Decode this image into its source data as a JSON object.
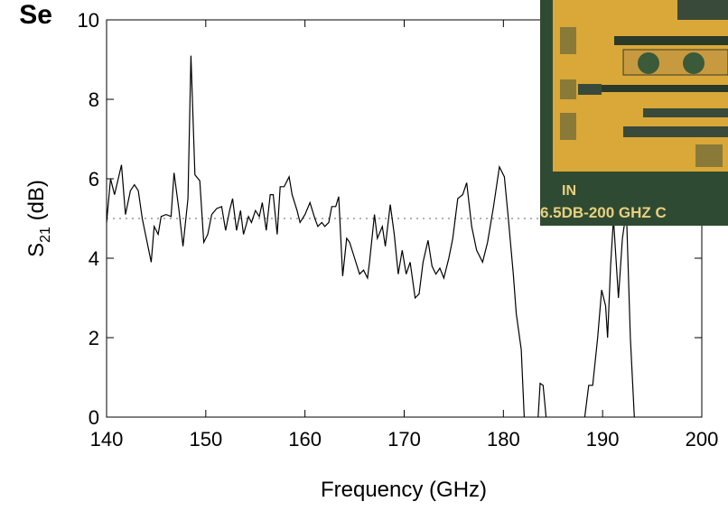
{
  "chart_data": {
    "type": "line",
    "title": "Se",
    "xlabel": "Frequency (GHz)",
    "ylabel": {
      "symbol": "S",
      "subscript": "21",
      "unit": "(dB)"
    },
    "xlim": [
      140,
      200
    ],
    "xticks": [
      140,
      150,
      160,
      170,
      180,
      190,
      200
    ],
    "ylim": [
      0,
      10
    ],
    "yticks": [
      0,
      2,
      4,
      6,
      8,
      10
    ],
    "reference_line": 5,
    "inset_labels": [
      "IN",
      "6.5DB-200 GHZ C"
    ],
    "series": [
      {
        "color": "#000000",
        "x": [
          140.0,
          140.4,
          140.8,
          141.5,
          141.9,
          142.4,
          142.8,
          143.2,
          143.6,
          144.5,
          144.8,
          145.2,
          145.5,
          146.0,
          146.5,
          146.8,
          147.3,
          147.7,
          148.2,
          148.5,
          148.9,
          149.4,
          149.8,
          150.2,
          150.6,
          151.1,
          151.6,
          152.0,
          152.4,
          152.7,
          153.1,
          153.5,
          153.8,
          154.3,
          154.6,
          155.0,
          155.4,
          155.7,
          156.1,
          156.5,
          156.8,
          157.2,
          157.5,
          157.9,
          158.4,
          158.7,
          159.2,
          159.5,
          160.0,
          160.5,
          161.0,
          161.3,
          161.7,
          162.0,
          162.4,
          162.7,
          163.1,
          163.4,
          163.8,
          164.2,
          164.5,
          165.0,
          165.5,
          165.9,
          166.3,
          166.5,
          167.0,
          167.3,
          167.8,
          168.1,
          168.6,
          169.0,
          169.4,
          169.8,
          170.2,
          170.6,
          171.1,
          171.5,
          171.9,
          172.4,
          172.8,
          173.2,
          173.6,
          174.0,
          174.5,
          174.9,
          175.4,
          175.9,
          176.3,
          176.8,
          177.3,
          177.9,
          178.4,
          179.0,
          179.6,
          180.1,
          180.5,
          181.0,
          181.3,
          181.8,
          182.1,
          182.8,
          183.5,
          183.7,
          184.0,
          184.3,
          186.0,
          188.2,
          188.6,
          189.0,
          189.5,
          189.9,
          190.3,
          190.5,
          190.8,
          191.1,
          191.6,
          192.0,
          192.4,
          192.8,
          193.2
        ],
        "values": [
          4.9,
          6.0,
          5.6,
          6.35,
          5.1,
          5.7,
          5.85,
          5.7,
          5.0,
          3.9,
          4.8,
          4.6,
          5.05,
          5.1,
          5.05,
          6.15,
          5.2,
          4.3,
          5.5,
          9.1,
          6.1,
          5.95,
          4.4,
          4.6,
          5.1,
          5.25,
          5.3,
          4.7,
          5.2,
          5.5,
          4.7,
          5.2,
          4.6,
          5.05,
          4.9,
          5.2,
          5.05,
          5.4,
          4.7,
          5.6,
          5.6,
          4.6,
          5.8,
          5.8,
          6.05,
          5.6,
          5.2,
          4.9,
          5.1,
          5.4,
          5.0,
          4.8,
          4.9,
          4.8,
          4.9,
          5.3,
          5.3,
          5.55,
          3.55,
          4.5,
          4.4,
          4.0,
          3.6,
          3.7,
          3.5,
          3.9,
          5.1,
          4.5,
          4.8,
          4.3,
          5.35,
          4.6,
          3.6,
          4.2,
          3.6,
          3.9,
          3.0,
          3.1,
          3.9,
          4.45,
          3.8,
          3.6,
          3.75,
          3.5,
          4.0,
          4.5,
          5.5,
          5.6,
          5.9,
          4.8,
          4.2,
          3.9,
          4.4,
          5.3,
          6.3,
          6.05,
          5.0,
          3.6,
          2.6,
          1.7,
          0,
          null,
          0,
          0.85,
          0.8,
          0,
          null,
          0,
          0.8,
          0.8,
          2.0,
          3.2,
          2.8,
          2.0,
          3.8,
          5.0,
          3.0,
          4.5,
          5.2,
          2.0,
          0
        ]
      }
    ]
  }
}
